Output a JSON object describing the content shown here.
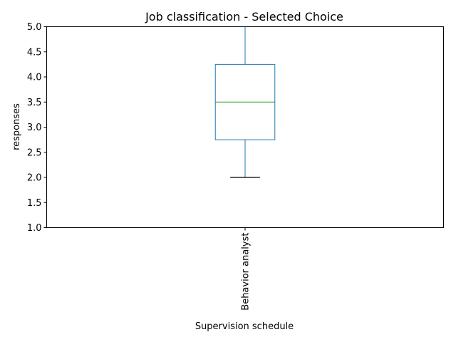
{
  "chart_data": {
    "type": "box",
    "title": "Job classification - Selected Choice",
    "xlabel": "Supervision schedule",
    "ylabel": "responses",
    "categories": [
      "Behavior analyst"
    ],
    "ylim": [
      1.0,
      5.0
    ],
    "yticks": [
      "1.0",
      "1.5",
      "2.0",
      "2.5",
      "3.0",
      "3.5",
      "4.0",
      "4.5",
      "5.0"
    ],
    "boxes": [
      {
        "category": "Behavior analyst",
        "whisker_low": 2.0,
        "q1": 2.75,
        "median": 3.5,
        "q3": 4.25,
        "whisker_high": 5.0
      }
    ],
    "grid": false,
    "colors": {
      "box": "#1f77b4",
      "median": "#2ca02c",
      "cap_low": "#000000"
    }
  }
}
